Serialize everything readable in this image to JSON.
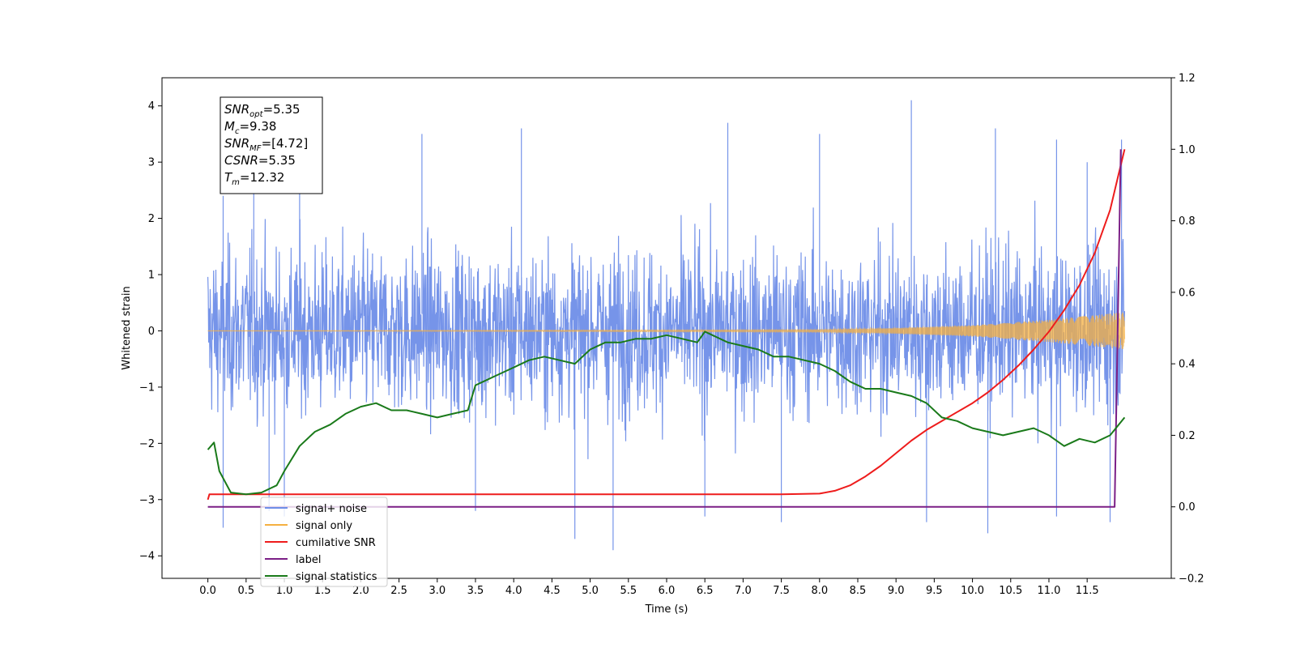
{
  "chart_data": {
    "type": "line",
    "xlabel": "Time (s)",
    "ylabel": "Whitened strain",
    "xlim": [
      -0.6,
      12.6
    ],
    "ylim_left": [
      -4.4,
      4.5
    ],
    "ylim_right": [
      -0.2,
      1.2
    ],
    "x_ticks": [
      0.0,
      0.5,
      1.0,
      1.5,
      2.0,
      2.5,
      3.0,
      3.5,
      4.0,
      4.5,
      5.0,
      5.5,
      6.0,
      6.5,
      7.0,
      7.5,
      8.0,
      8.5,
      9.0,
      9.5,
      10.0,
      10.5,
      11.0,
      11.5
    ],
    "x_tick_labels": [
      "0.0",
      "0.5",
      "1.0",
      "1.5",
      "2.0",
      "2.5",
      "3.0",
      "3.5",
      "4.0",
      "4.5",
      "5.0",
      "5.5",
      "6.0",
      "6.5",
      "7.0",
      "7.5",
      "8.0",
      "8.5",
      "9.0",
      "9.5",
      "10.0",
      "10.5",
      "11.0",
      "11.5"
    ],
    "y_ticks_left": [
      -4,
      -3,
      -2,
      -1,
      0,
      1,
      2,
      3,
      4
    ],
    "y_tick_labels_left": [
      "−4",
      "−3",
      "−2",
      "−1",
      "0",
      "1",
      "2",
      "3",
      "4"
    ],
    "y_ticks_right": [
      -0.2,
      0.0,
      0.2,
      0.4,
      0.6,
      0.8,
      1.0,
      1.2
    ],
    "y_tick_labels_right": [
      "−0.2",
      "0.0",
      "0.2",
      "0.4",
      "0.6",
      "0.8",
      "1.0",
      "1.2"
    ],
    "grid": false,
    "legend_placement": "lower-left",
    "series": [
      {
        "name": "signal+ noise",
        "axis": "left",
        "color": "#6f8ee8",
        "style": "noise",
        "x_range": [
          0.0,
          11.99
        ],
        "envelope": {
          "typical_max": 2.0,
          "typical_min": -2.0
        },
        "peaks": [
          [
            0.2,
            2.4
          ],
          [
            0.6,
            2.9
          ],
          [
            1.2,
            3.1
          ],
          [
            2.8,
            3.5
          ],
          [
            4.1,
            3.6
          ],
          [
            6.8,
            3.7
          ],
          [
            8.0,
            3.5
          ],
          [
            9.2,
            4.1
          ],
          [
            10.3,
            3.6
          ],
          [
            11.1,
            3.4
          ],
          [
            11.5,
            3.0
          ],
          [
            11.95,
            3.4
          ]
        ],
        "troughs": [
          [
            0.2,
            -3.5
          ],
          [
            0.8,
            -3.2
          ],
          [
            1.0,
            -3.3
          ],
          [
            3.5,
            -3.2
          ],
          [
            4.8,
            -3.7
          ],
          [
            5.3,
            -3.9
          ],
          [
            6.5,
            -3.3
          ],
          [
            7.5,
            -3.4
          ],
          [
            9.4,
            -3.4
          ],
          [
            10.2,
            -3.6
          ],
          [
            11.1,
            -3.3
          ],
          [
            11.8,
            -3.4
          ]
        ]
      },
      {
        "name": "signal only",
        "axis": "left",
        "color": "#f5b041",
        "style": "chirp",
        "x_range": [
          0.0,
          11.99
        ],
        "amplitude_points": [
          [
            0.0,
            0.0
          ],
          [
            8.0,
            0.02
          ],
          [
            9.0,
            0.05
          ],
          [
            10.0,
            0.1
          ],
          [
            11.0,
            0.2
          ],
          [
            11.99,
            0.33
          ]
        ]
      },
      {
        "name": "cumilative SNR",
        "axis": "right",
        "color": "#ee1c1c",
        "x": [
          0.0,
          0.02,
          0.5,
          1.0,
          2.0,
          3.0,
          4.0,
          5.0,
          6.0,
          7.0,
          7.5,
          8.0,
          8.2,
          8.4,
          8.6,
          8.8,
          9.0,
          9.2,
          9.4,
          9.6,
          9.8,
          10.0,
          10.2,
          10.4,
          10.6,
          10.8,
          11.0,
          11.2,
          11.4,
          11.6,
          11.8,
          11.9,
          11.99
        ],
        "y": [
          0.02,
          0.035,
          0.035,
          0.035,
          0.035,
          0.035,
          0.035,
          0.035,
          0.035,
          0.035,
          0.035,
          0.037,
          0.045,
          0.06,
          0.085,
          0.115,
          0.15,
          0.185,
          0.215,
          0.24,
          0.265,
          0.29,
          0.32,
          0.355,
          0.395,
          0.44,
          0.49,
          0.55,
          0.62,
          0.71,
          0.83,
          0.92,
          1.0
        ]
      },
      {
        "name": "label",
        "axis": "right",
        "color": "#7b1f86",
        "x": [
          0.0,
          11.86,
          11.94
        ],
        "y": [
          0.0,
          0.0,
          1.0
        ]
      },
      {
        "name": "signal statistics",
        "axis": "right",
        "color": "#1a7a1a",
        "x": [
          0.0,
          0.08,
          0.15,
          0.3,
          0.5,
          0.7,
          0.9,
          1.0,
          1.2,
          1.4,
          1.6,
          1.8,
          2.0,
          2.2,
          2.4,
          2.6,
          2.8,
          3.0,
          3.2,
          3.4,
          3.5,
          3.6,
          3.8,
          4.0,
          4.2,
          4.4,
          4.6,
          4.8,
          5.0,
          5.2,
          5.4,
          5.6,
          5.8,
          6.0,
          6.2,
          6.4,
          6.5,
          6.6,
          6.8,
          7.0,
          7.2,
          7.4,
          7.6,
          7.8,
          8.0,
          8.2,
          8.4,
          8.6,
          8.8,
          9.0,
          9.2,
          9.4,
          9.6,
          9.8,
          10.0,
          10.2,
          10.4,
          10.6,
          10.8,
          11.0,
          11.2,
          11.4,
          11.6,
          11.8,
          11.99
        ],
        "y": [
          0.16,
          0.18,
          0.1,
          0.04,
          0.035,
          0.04,
          0.06,
          0.1,
          0.17,
          0.21,
          0.23,
          0.26,
          0.28,
          0.29,
          0.27,
          0.27,
          0.26,
          0.25,
          0.26,
          0.27,
          0.34,
          0.35,
          0.37,
          0.39,
          0.41,
          0.42,
          0.41,
          0.4,
          0.44,
          0.46,
          0.46,
          0.47,
          0.47,
          0.48,
          0.47,
          0.46,
          0.49,
          0.48,
          0.46,
          0.45,
          0.44,
          0.42,
          0.42,
          0.41,
          0.4,
          0.38,
          0.35,
          0.33,
          0.33,
          0.32,
          0.31,
          0.29,
          0.25,
          0.24,
          0.22,
          0.21,
          0.2,
          0.21,
          0.22,
          0.2,
          0.17,
          0.19,
          0.18,
          0.2,
          0.25
        ]
      }
    ],
    "legend": [
      {
        "label": "signal+ noise",
        "color": "#6f8ee8"
      },
      {
        "label": "signal only",
        "color": "#f5b041"
      },
      {
        "label": "cumilative SNR",
        "color": "#ee1c1c"
      },
      {
        "label": "label",
        "color": "#7b1f86"
      },
      {
        "label": "signal statistics",
        "color": "#1a7a1a"
      }
    ],
    "annotation": {
      "lines": [
        {
          "main": "SNR",
          "sub": "opt",
          "rest": "=5.35"
        },
        {
          "main": "M",
          "sub": "c",
          "rest": "=9.38"
        },
        {
          "main": "SNR",
          "sub": "MF",
          "rest": "=[4.72]"
        },
        {
          "main": "CSNR",
          "sub": "",
          "rest": "=5.35"
        },
        {
          "main": "T",
          "sub": "m",
          "rest": "=12.32"
        }
      ]
    }
  }
}
